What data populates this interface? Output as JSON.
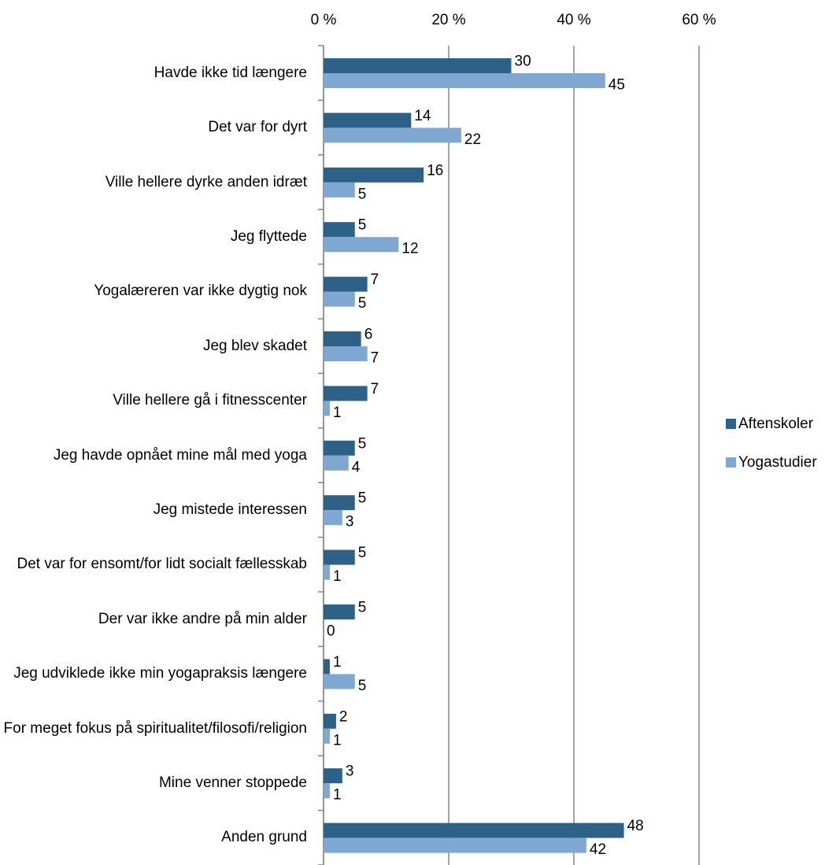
{
  "chart_data": {
    "type": "bar",
    "orientation": "horizontal",
    "categories": [
      "Havde ikke tid længere",
      "Det var for dyrt",
      "Ville hellere dyrke anden idræt",
      "Jeg flyttede",
      "Yogalæreren var ikke dygtig nok",
      "Jeg blev skadet",
      "Ville hellere gå i fitnesscenter",
      "Jeg havde opnået mine mål med yoga",
      "Jeg mistede interessen",
      "Det var for ensomt/for lidt socialt fællesskab",
      "Der var ikke andre på min alder",
      "Jeg udviklede ikke min yogapraksis længere",
      "For meget fokus på spiritualitet/filosofi/religion",
      "Mine venner stoppede",
      "Anden grund"
    ],
    "series": [
      {
        "name": "Aftenskoler",
        "color": "#2e6188",
        "values": [
          30,
          14,
          16,
          5,
          7,
          6,
          7,
          5,
          5,
          5,
          5,
          1,
          2,
          3,
          48
        ]
      },
      {
        "name": "Yogastudier",
        "color": "#7ea7d1",
        "values": [
          45,
          22,
          5,
          12,
          5,
          7,
          1,
          4,
          3,
          1,
          0,
          5,
          1,
          1,
          42
        ]
      }
    ],
    "xlim": [
      0,
      60
    ],
    "xticks": [
      {
        "value": 0,
        "label": "0 %"
      },
      {
        "value": 20,
        "label": "20 %"
      },
      {
        "value": 40,
        "label": "40 %"
      },
      {
        "value": 60,
        "label": "60 %"
      }
    ],
    "grid": true,
    "legend": "right"
  }
}
